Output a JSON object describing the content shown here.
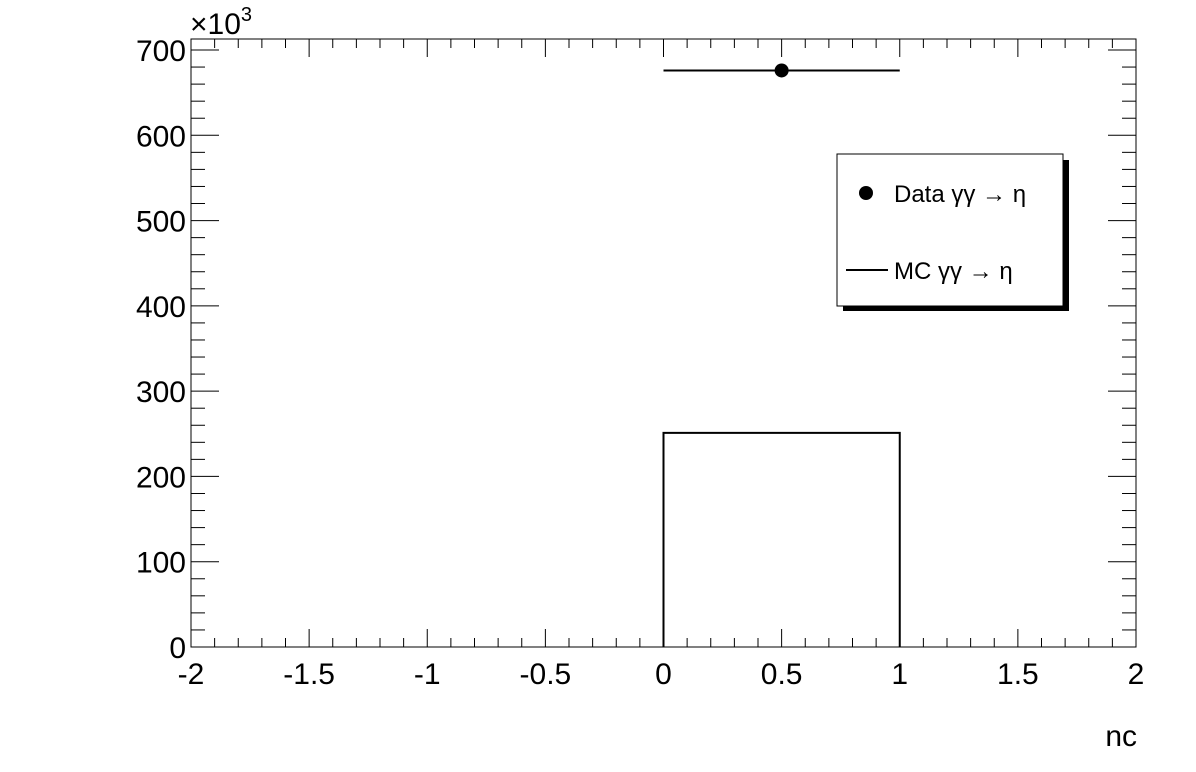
{
  "chart_data": {
    "type": "histogram",
    "title": "",
    "xlabel": "nc",
    "ylabel": "",
    "y_scale_label": "×10",
    "y_scale_exponent": "3",
    "xlim": [
      -2,
      2
    ],
    "ylim": [
      0,
      700
    ],
    "x_ticks": [
      "-2",
      "-1.5",
      "-1",
      "-0.5",
      "0",
      "0.5",
      "1",
      "1.5",
      "2"
    ],
    "y_ticks": [
      "0",
      "100",
      "200",
      "300",
      "400",
      "500",
      "600",
      "700"
    ],
    "x_tick_values": [
      -2,
      -1.5,
      -1,
      -0.5,
      0,
      0.5,
      1,
      1.5,
      2
    ],
    "y_tick_values": [
      0,
      100,
      200,
      300,
      400,
      500,
      600,
      700
    ],
    "series": [
      {
        "name": "Data γγ → η",
        "style": "points",
        "color": "#000000",
        "points": [
          {
            "x": 0.5,
            "y": 676,
            "xerr": 0.5
          }
        ]
      },
      {
        "name": "MC γγ → η",
        "style": "step",
        "color": "#000000",
        "bins": [
          {
            "x_low": 0,
            "x_high": 1,
            "y": 251
          }
        ]
      }
    ],
    "legend": [
      {
        "label": "Data γγ → η",
        "marker": "point"
      },
      {
        "label": "MC γγ → η",
        "marker": "line"
      }
    ],
    "legend_position": "top-right"
  }
}
